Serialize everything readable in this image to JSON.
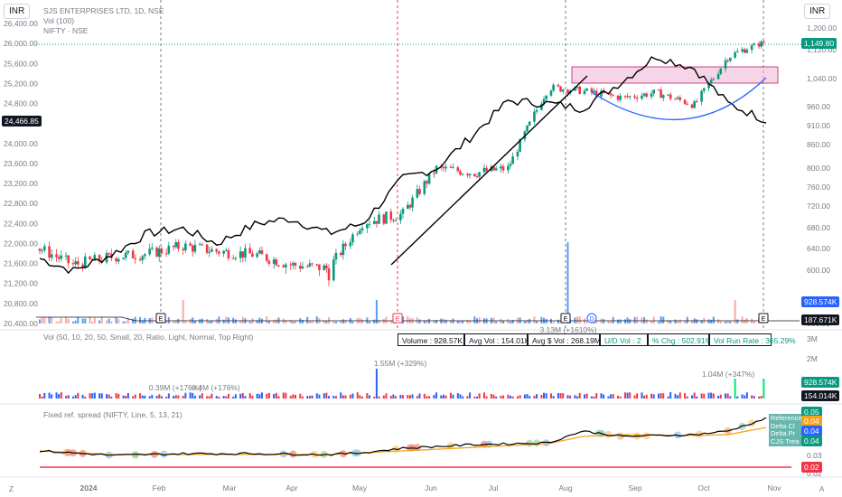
{
  "symbol_title": "SJS ENTERPRISES LTD, 1D, NSE",
  "vol_legend": "Vol (100)",
  "compare_legend": "NIFTY · NSE",
  "currency_left": "INR",
  "currency_right": "INR",
  "scale_left": [
    "26,400.00",
    "26,000.00",
    "25,600.00",
    "25,200.00",
    "24,800.00",
    "24,000.00",
    "23,600.00",
    "23,200.00",
    "22,800.00",
    "22,400.00",
    "22,000.00",
    "21,600.00",
    "21,200.00",
    "20,800.00",
    "20,400.00"
  ],
  "scale_right": [
    "1,200.00",
    "1,120.00",
    "1,040.00",
    "960.00",
    "910.00",
    "860.00",
    "800.00",
    "760.00",
    "720.00",
    "680.00",
    "640.00",
    "600.00",
    "560.00"
  ],
  "left_last_label": "24,466.85",
  "right_price_label": "1,149.80",
  "right_vol_label": "928.574K",
  "right_vol_label2": "187.671K",
  "vol_panel_legend": "Vol (50, 10, 20, 50, Small, 20, Ratio, Light, Normal, Top Right)",
  "stats": {
    "volume": "Volume : 928.57K",
    "avg_vol": "Avg Vol : 154.01K",
    "avg_dollar": "Avg $ Vol : 268.19M",
    "ud": "U/D Vol : 2",
    "chg": "% Chg : 502.91%",
    "run_rate": "Vol Run Rate : 365.29%"
  },
  "vol_annotations": [
    "0.39M (+176%)",
    "0.4M (+176%)",
    "1.55M (+329%)",
    "3.13M (+1610%)",
    "1.04M (+347%)"
  ],
  "vol_scale": [
    "3M",
    "2M",
    "1M"
  ],
  "vol_price_labels": [
    "928.574K",
    "154.014K"
  ],
  "spread_legend": "Fixed ref. spread (NIFTY, Line, 5, 13, 21)",
  "spread_scale": [
    "0.05",
    "0.04",
    "0.03",
    "0.02"
  ],
  "spread_price_labels": [
    "0.05",
    "0.04",
    "0.04",
    "0.04",
    "0.02"
  ],
  "spread_overlay_lines": [
    "Reference",
    "Delta Cl",
    "Delta Pr",
    "CJS Trea"
  ],
  "time_axis": [
    "2024",
    "Feb",
    "Mar",
    "Apr",
    "May",
    "Jun",
    "Jul",
    "Aug",
    "Sep",
    "Oct",
    "Nov"
  ],
  "event_markers": [
    "E",
    "E",
    "E",
    "D",
    "E"
  ],
  "chart_data": [
    {
      "type": "line",
      "title": "SJS ENTERPRISES LTD, 1D, NSE",
      "x": [
        "2024-01-01",
        "2024-01-15",
        "2024-02-01",
        "2024-02-15",
        "2024-03-01",
        "2024-03-15",
        "2024-04-01",
        "2024-04-15",
        "2024-05-01",
        "2024-05-15",
        "2024-06-01",
        "2024-06-15",
        "2024-07-01",
        "2024-07-15",
        "2024-08-01",
        "2024-08-15",
        "2024-09-01",
        "2024-09-15",
        "2024-10-01",
        "2024-10-15",
        "2024-10-31"
      ],
      "series": [
        {
          "name": "SJS ENTERPRISES LTD",
          "values": [
            640,
            610,
            625,
            630,
            645,
            635,
            628,
            610,
            603,
            690,
            705,
            800,
            790,
            800,
            1015,
            1005,
            985,
            1000,
            965,
            1100,
            1149.8
          ]
        },
        {
          "name": "NIFTY",
          "values": [
            21700,
            21450,
            21800,
            22200,
            22300,
            22000,
            22400,
            22500,
            22200,
            22400,
            23300,
            23500,
            24200,
            24850,
            24800,
            24700,
            25250,
            25750,
            25500,
            24800,
            24466.85
          ]
        }
      ],
      "ylim_left": [
        20400,
        26400
      ],
      "ylim_right": [
        560,
        1200
      ]
    },
    {
      "type": "bar",
      "title": "Vol (50, 10, 20, 50, Small, 20, Ratio, Light, Normal, Top Right)",
      "peaks": [
        {
          "date": "2024-02-08",
          "label": "0.39M (+176%)"
        },
        {
          "date": "2024-03-01",
          "label": "0.4M (+176%)"
        },
        {
          "date": "2024-05-21",
          "label": "1.55M (+329%)"
        },
        {
          "date": "2024-08-01",
          "label": "3.13M (+1610%)"
        },
        {
          "date": "2024-10-18",
          "label": "1.04M (+347%)"
        }
      ],
      "last_volume": "928.574K",
      "avg_volume": "154.014K"
    },
    {
      "type": "line",
      "title": "Fixed ref. spread (NIFTY, Line, 5, 13, 21)",
      "x": [
        "2024-01-01",
        "2024-02-01",
        "2024-03-01",
        "2024-04-01",
        "2024-05-01",
        "2024-05-15",
        "2024-06-01",
        "2024-07-01",
        "2024-08-01",
        "2024-08-15",
        "2024-09-01",
        "2024-10-01",
        "2024-10-15",
        "2024-10-31"
      ],
      "series": [
        {
          "name": "spread",
          "values": [
            0.029,
            0.0265,
            0.0275,
            0.0275,
            0.027,
            0.028,
            0.0305,
            0.0325,
            0.0335,
            0.04,
            0.037,
            0.038,
            0.04,
            0.047
          ]
        },
        {
          "name": "MA",
          "values": [
            0.029,
            0.027,
            0.027,
            0.027,
            0.027,
            0.028,
            0.029,
            0.031,
            0.033,
            0.037,
            0.038,
            0.0375,
            0.038,
            0.042
          ]
        }
      ],
      "ylim": [
        0.02,
        0.05
      ]
    }
  ]
}
